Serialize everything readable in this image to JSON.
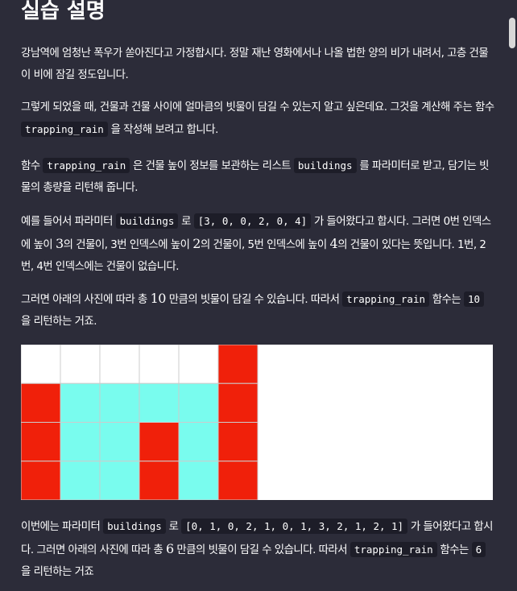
{
  "title": "실습 설명",
  "p1": {
    "text": "강남역에 엄청난 폭우가 쏟아진다고 가정합시다. 정말 재난 영화에서나 나올 법한 양의 비가 내려서, 고층 건물이 비에 잠길 정도입니다."
  },
  "p2": {
    "a": "그렇게 되었을 때, 건물과 건물 사이에 얼마큼의 빗물이 담길 수 있는지 알고 싶은데요. 그것을 계산해 주는 함수 ",
    "code": "trapping_rain",
    "b": " 을 작성해 보려고 합니다."
  },
  "p3": {
    "a": "함수 ",
    "code1": "trapping_rain",
    "b": " 은 건물 높이 정보를 보관하는 리스트 ",
    "code2": "buildings",
    "c": " 를 파라미터로 받고, 담기는 빗물의 총량을 리턴해 줍니다."
  },
  "p4": {
    "a": "예를 들어서 파라미터 ",
    "code1": "buildings",
    "b": " 로 ",
    "code2": "[3, 0, 0, 2, 0, 4]",
    "c": " 가 들어왔다고 합시다. 그러면 0번 인덱스에 높이 ",
    "n1": "3",
    "d": "의 건물이, 3번 인덱스에 높이 ",
    "n2": "2",
    "e": "의 건물이, 5번 인덱스에 높이 ",
    "n3": "4",
    "f": "의 건물이 있다는 뜻입니다. 1번, 2번, 4번 인덱스에는 건물이 없습니다."
  },
  "p5": {
    "a": "그러면 아래의 사진에 따라 총 ",
    "n": "10",
    "b": " 만큼의 빗물이 담길 수 있습니다. 따라서 ",
    "code1": "trapping_rain",
    "c": " 함수는 ",
    "code2": "10",
    "d": " 을 리턴하는 거죠."
  },
  "p6": {
    "a": "이번에는 파라미터 ",
    "code1": "buildings",
    "b": " 로 ",
    "code2": "[0, 1, 0, 2, 1, 0, 1, 3, 2, 1, 2, 1]",
    "c": " 가 들어왔다고 합시다. 그러면 아래의 사진에 따라 총 ",
    "n": "6",
    "d": " 만큼의 빗물이 담길 수 있습니다. 따라서 ",
    "code3": "trapping_rain",
    "e": " 함수는 ",
    "code4": "6",
    "f": " 을 리턴하는 거죠"
  },
  "diagram": {
    "heights": [
      3,
      0,
      0,
      2,
      0,
      4
    ],
    "max_height": 4,
    "colors": {
      "building": "#f0200a",
      "water": "#79fcee",
      "empty": "#ffffff",
      "grid": "#cccccc"
    }
  }
}
